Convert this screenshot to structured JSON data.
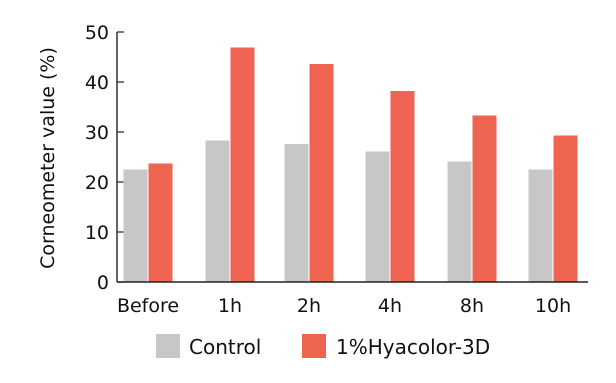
{
  "chart_data": {
    "type": "bar",
    "categories": [
      "Before",
      "1h",
      "2h",
      "4h",
      "8h",
      "10h"
    ],
    "series": [
      {
        "name": "Control",
        "values": [
          22.5,
          28.3,
          27.6,
          26.1,
          24.1,
          22.5
        ],
        "color": "#c7c7c7"
      },
      {
        "name": "1%Hyacolor-3D",
        "values": [
          23.7,
          46.9,
          43.6,
          38.2,
          33.3,
          29.3
        ],
        "color": "#ee6450"
      }
    ],
    "title": "",
    "xlabel": "",
    "ylabel": "Corneometer value (%)",
    "ylim": [
      0,
      50
    ],
    "yticks": [
      0,
      10,
      20,
      30,
      40,
      50
    ],
    "grid": false,
    "legend_position": "bottom"
  }
}
